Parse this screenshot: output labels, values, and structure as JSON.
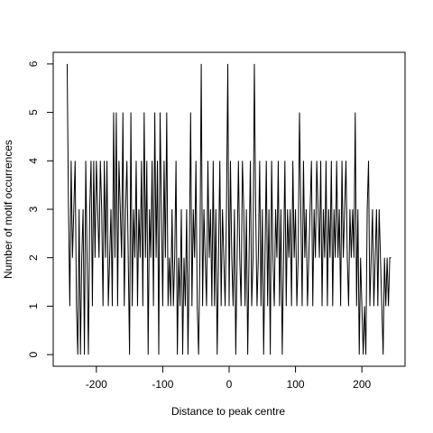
{
  "chart_data": {
    "type": "line",
    "xlabel": "Distance to peak centre",
    "ylabel": "Number of motif occurrences",
    "color": "#000000",
    "xlim": [
      -265,
      265
    ],
    "ylim": [
      -0.24,
      6.24
    ],
    "xticks": [
      -200,
      -100,
      0,
      100,
      200
    ],
    "yticks": [
      0,
      1,
      2,
      3,
      4,
      5,
      6
    ],
    "x": [
      -244,
      -242,
      -240,
      -238,
      -236,
      -234,
      -232,
      -230,
      -228,
      -226,
      -224,
      -222,
      -220,
      -218,
      -216,
      -214,
      -212,
      -210,
      -208,
      -206,
      -204,
      -202,
      -200,
      -198,
      -196,
      -194,
      -192,
      -190,
      -188,
      -186,
      -184,
      -182,
      -180,
      -178,
      -176,
      -174,
      -172,
      -170,
      -168,
      -166,
      -164,
      -162,
      -160,
      -158,
      -156,
      -154,
      -152,
      -150,
      -148,
      -146,
      -144,
      -142,
      -140,
      -138,
      -136,
      -134,
      -132,
      -130,
      -128,
      -126,
      -124,
      -122,
      -120,
      -118,
      -116,
      -114,
      -112,
      -110,
      -108,
      -106,
      -104,
      -102,
      -100,
      -98,
      -96,
      -94,
      -92,
      -90,
      -88,
      -86,
      -84,
      -82,
      -80,
      -78,
      -76,
      -74,
      -72,
      -70,
      -68,
      -66,
      -64,
      -62,
      -60,
      -58,
      -56,
      -54,
      -52,
      -50,
      -48,
      -46,
      -44,
      -42,
      -40,
      -38,
      -36,
      -34,
      -32,
      -30,
      -28,
      -26,
      -24,
      -22,
      -20,
      -18,
      -16,
      -14,
      -12,
      -10,
      -8,
      -6,
      -4,
      -2,
      0,
      2,
      4,
      6,
      8,
      10,
      12,
      14,
      16,
      18,
      20,
      22,
      24,
      26,
      28,
      30,
      32,
      34,
      36,
      38,
      40,
      42,
      44,
      46,
      48,
      50,
      52,
      54,
      56,
      58,
      60,
      62,
      64,
      66,
      68,
      70,
      72,
      74,
      76,
      78,
      80,
      82,
      84,
      86,
      88,
      90,
      92,
      94,
      96,
      98,
      100,
      102,
      104,
      106,
      108,
      110,
      112,
      114,
      116,
      118,
      120,
      122,
      124,
      126,
      128,
      130,
      132,
      134,
      136,
      138,
      140,
      142,
      144,
      146,
      148,
      150,
      152,
      154,
      156,
      158,
      160,
      162,
      164,
      166,
      168,
      170,
      172,
      174,
      176,
      178,
      180,
      182,
      184,
      186,
      188,
      190,
      192,
      194,
      196,
      198,
      200,
      202,
      204,
      206,
      208,
      210,
      212,
      214,
      216,
      218,
      220,
      222,
      224,
      226,
      228,
      230,
      232,
      234,
      236,
      238,
      240,
      242,
      244
    ],
    "values": [
      6,
      3,
      1,
      4,
      2,
      3,
      4,
      1,
      0,
      3,
      0,
      2,
      3,
      0,
      4,
      2,
      0,
      3,
      4,
      1,
      4,
      2,
      4,
      3,
      2,
      4,
      3,
      1,
      4,
      2,
      4,
      1,
      2,
      3,
      1,
      5,
      2,
      5,
      1,
      4,
      3,
      2,
      5,
      1,
      3,
      4,
      2,
      0,
      5,
      1,
      3,
      2,
      4,
      1,
      3,
      2,
      4,
      1,
      5,
      2,
      4,
      0,
      3,
      2,
      4,
      1,
      5,
      2,
      4,
      0,
      5,
      3,
      1,
      4,
      2,
      5,
      1,
      2,
      1,
      3,
      1,
      2,
      4,
      0,
      2,
      1,
      3,
      0,
      2,
      1,
      3,
      0,
      2,
      5,
      1,
      3,
      2,
      4,
      1,
      0,
      2,
      6,
      1,
      3,
      2,
      1,
      4,
      2,
      3,
      1,
      4,
      1,
      3,
      0,
      2,
      4,
      1,
      3,
      2,
      1,
      3,
      6,
      1,
      4,
      2,
      1,
      3,
      0,
      2,
      4,
      2,
      1,
      4,
      3,
      1,
      3,
      0,
      2,
      4,
      1,
      2,
      6,
      3,
      1,
      2,
      4,
      1,
      3,
      0,
      2,
      4,
      1,
      3,
      0,
      4,
      2,
      1,
      3,
      2,
      4,
      1,
      3,
      0,
      2,
      4,
      1,
      3,
      2,
      3,
      1,
      4,
      2,
      3,
      1,
      2,
      5,
      3,
      1,
      4,
      2,
      3,
      1,
      2,
      3,
      4,
      1,
      3,
      2,
      4,
      3,
      2,
      4,
      1,
      3,
      2,
      4,
      1,
      3,
      2,
      4,
      1,
      3,
      2,
      4,
      2,
      3,
      1,
      4,
      2,
      3,
      4,
      2,
      1,
      3,
      2,
      3,
      2,
      5,
      1,
      3,
      0,
      2,
      1,
      0,
      1,
      0,
      3,
      4,
      1,
      2,
      3,
      1,
      2,
      3,
      1,
      3,
      2,
      1,
      0,
      2,
      1,
      2,
      1,
      2,
      2
    ]
  }
}
